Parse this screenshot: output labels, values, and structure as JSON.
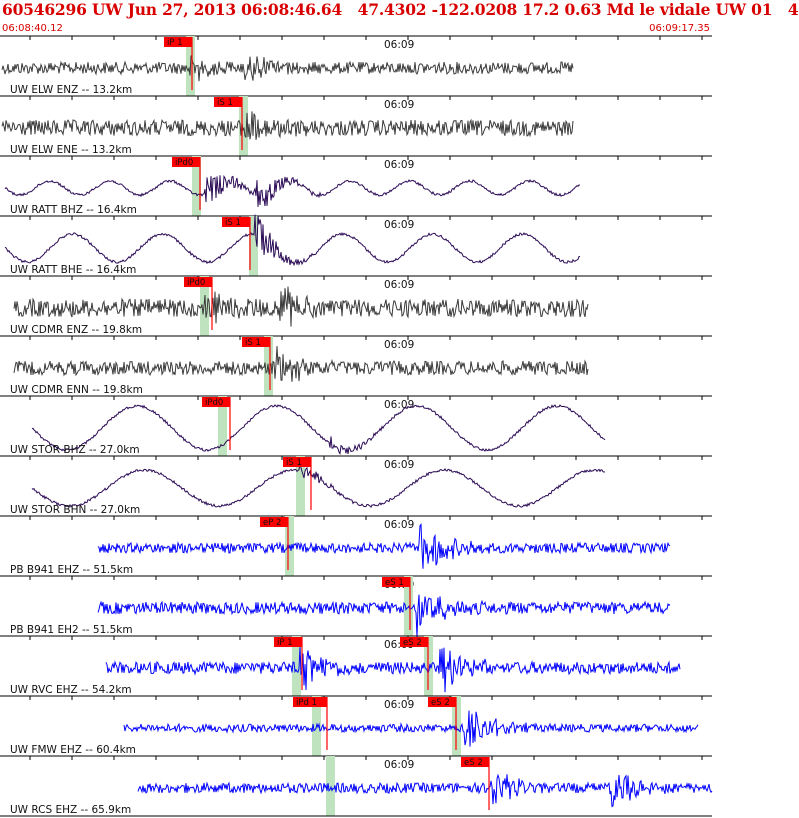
{
  "header": {
    "title": "60546296 UW Jun 27, 2013 06:08:46.64   47.4302 -122.0208 17.2 0.63 Md le vidale UW 01   4",
    "time_start": "06:08:40.12",
    "time_end": "06:09:17.35"
  },
  "colors": {
    "header_text": "#d90000",
    "trace_local": "#3a3a3a",
    "trace_mid": "#2a0a55",
    "trace_far": "#0000ff",
    "pick_box": "#ff0000",
    "theory_band": "#bfe3bf",
    "panel_line": "#000000"
  },
  "chart_data": {
    "type": "line",
    "title": "60546296 UW Jun 27, 2013 06:08:46.64   47.4302 -122.0208 17.2 0.63 Md le vidale UW 01   4",
    "x_range_time": [
      "06:08:40.12",
      "06:09:17.35"
    ],
    "tick_label": "06:09",
    "traces": [
      {
        "label": "UW ELW ENZ -- 13.2km",
        "color": "trace_local",
        "pick": "iP 1",
        "pick_time_s": 8.6
      },
      {
        "label": "UW ELW ENE -- 13.2km",
        "color": "trace_local",
        "pick": "iS 1",
        "pick_time_s": 11.6
      },
      {
        "label": "UW RATT BHZ -- 16.4km",
        "color": "trace_mid",
        "pick": "iPd0",
        "pick_time_s": 9.3
      },
      {
        "label": "UW RATT BHE -- 16.4km",
        "color": "trace_mid",
        "pick": "iS 1",
        "pick_time_s": 12.5
      },
      {
        "label": "UW CDMR ENZ -- 19.8km",
        "color": "trace_local",
        "pick": "iPd0",
        "pick_time_s": 10.0
      },
      {
        "label": "UW CDMR ENN -- 19.8km",
        "color": "trace_local",
        "pick": "iS 1",
        "pick_time_s": 13.9
      },
      {
        "label": "UW STOR BHZ -- 27.0km",
        "color": "trace_mid",
        "pick": "iPd0",
        "pick_time_s": 10.9
      },
      {
        "label": "UW STOR BHN -- 27.0km",
        "color": "trace_mid",
        "pick": "iS 1",
        "pick_time_s": 15.3
      },
      {
        "label": "PB B941 EHZ -- 51.5km",
        "color": "trace_far",
        "pick": "eP 2",
        "pick_time_s": 14.1
      },
      {
        "label": "PB B941 EH2 -- 51.5km",
        "color": "trace_far",
        "pick": "eS 1",
        "pick_time_s": 20.3
      },
      {
        "label": "UW RVC EHZ -- 54.2km",
        "color": "trace_far",
        "pick": "iP 1",
        "pick_time_s": 14.4
      },
      {
        "label": "UW RVC EHZ -- 54.2km",
        "color": "trace_far",
        "pick": "eS 2",
        "pick_time_s": 21.2
      },
      {
        "label": "UW FMW EHZ -- 60.4km",
        "color": "trace_far",
        "pick": "iPd 1",
        "pick_time_s": 15.3
      },
      {
        "label": "UW FMW EHZ -- 60.4km",
        "color": "trace_far",
        "pick": "eS 2",
        "pick_time_s": 22.5
      },
      {
        "label": "UW RCS EHZ -- 65.9km",
        "color": "trace_far",
        "pick": "eS 2",
        "pick_time_s": 24.2
      }
    ]
  }
}
